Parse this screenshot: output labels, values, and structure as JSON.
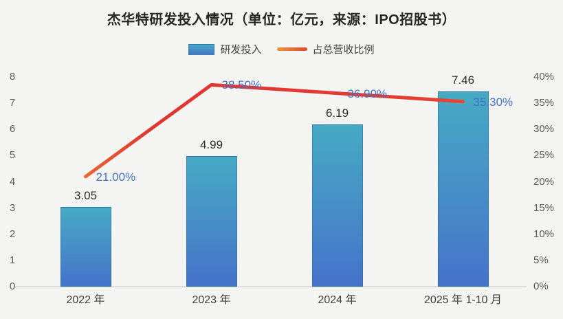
{
  "title": "杰华特研发投入情况（单位：亿元，来源：IPO招股书）",
  "legend": {
    "bar_label": "研发投入",
    "line_label": "占总营收比例"
  },
  "colors": {
    "background": "#f4f4f3",
    "bar_gradient_top": "#46aac4",
    "bar_gradient_bottom": "#4673ca",
    "line_gradient_start": "#f0983f",
    "line_gradient_peak": "#df362f",
    "line_gradient_end": "#ea4f2c",
    "line_value_label": "#4472c4",
    "bar_value_label": "#2b2b2b",
    "axis_tick": "#595959",
    "axis_line": "#dbdbdb",
    "title_text": "#262626"
  },
  "chart_data": {
    "type": "bar+line combo",
    "title": "杰华特研发投入情况（单位：亿元，来源：IPO招股书）",
    "categories": [
      "2022 年",
      "2023 年",
      "2024 年",
      "2025 年 1-10 月"
    ],
    "series": [
      {
        "name": "研发投入",
        "type": "bar",
        "axis": "left",
        "values": [
          3.05,
          4.99,
          6.19,
          7.46
        ],
        "labels": [
          "3.05",
          "4.99",
          "6.19",
          "7.46"
        ]
      },
      {
        "name": "占总营收比例",
        "type": "line",
        "axis": "right",
        "values": [
          21.0,
          38.5,
          36.9,
          35.3
        ],
        "labels": [
          "21.00%",
          "38.50%",
          "36.90%",
          "35.30%"
        ]
      }
    ],
    "left_axis": {
      "min": 0,
      "max": 8,
      "step": 1,
      "ticks": [
        "0",
        "1",
        "2",
        "3",
        "4",
        "5",
        "6",
        "7",
        "8"
      ]
    },
    "right_axis": {
      "min": 0,
      "max": 40,
      "step": 5,
      "ticks": [
        "0%",
        "5%",
        "10%",
        "15%",
        "20%",
        "25%",
        "30%",
        "35%",
        "40%"
      ]
    },
    "grid": false,
    "legend_position": "top-center"
  }
}
